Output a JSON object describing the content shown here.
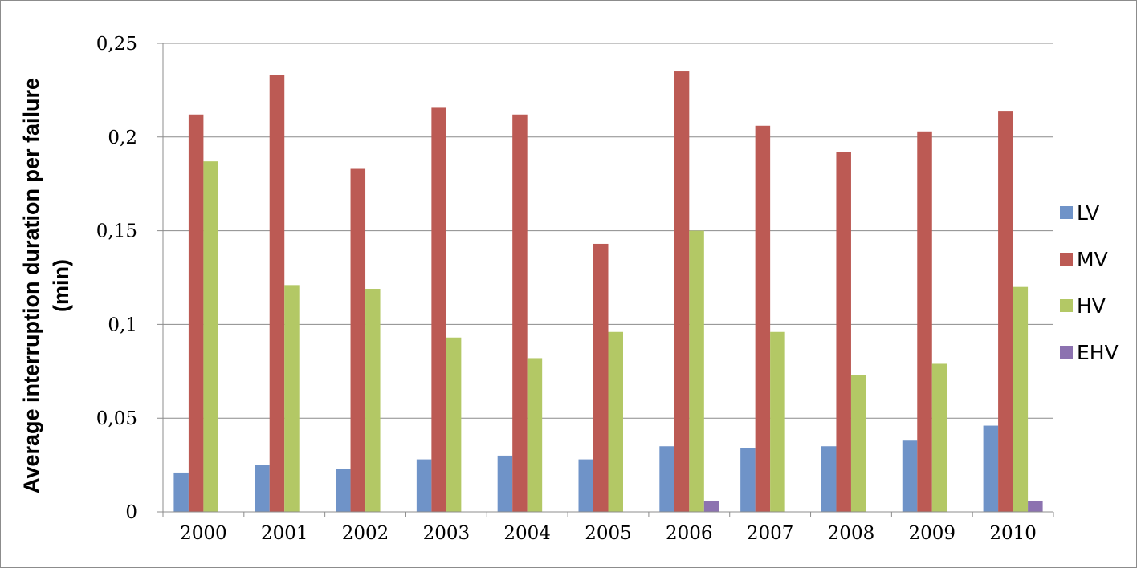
{
  "chart_data": {
    "type": "bar",
    "title": "",
    "xlabel": "",
    "ylabel_lines": [
      "Average interruption duration per failure",
      "(min)"
    ],
    "categories": [
      "2000",
      "2001",
      "2002",
      "2003",
      "2004",
      "2005",
      "2006",
      "2007",
      "2008",
      "2009",
      "2010"
    ],
    "y_ticks": [
      "0",
      "0,05",
      "0,1",
      "0,15",
      "0,2",
      "0,25"
    ],
    "ylim": [
      0,
      0.25
    ],
    "grid": true,
    "legend_position": "right",
    "series": [
      {
        "name": "LV",
        "color": "#6f93c8",
        "values": [
          0.021,
          0.025,
          0.023,
          0.028,
          0.03,
          0.028,
          0.035,
          0.034,
          0.035,
          0.038,
          0.046
        ]
      },
      {
        "name": "MV",
        "color": "#bc5a54",
        "values": [
          0.212,
          0.233,
          0.183,
          0.216,
          0.212,
          0.143,
          0.235,
          0.206,
          0.192,
          0.203,
          0.214
        ]
      },
      {
        "name": "HV",
        "color": "#b3c865",
        "values": [
          0.187,
          0.121,
          0.119,
          0.093,
          0.082,
          0.096,
          0.15,
          0.096,
          0.073,
          0.079,
          0.12
        ]
      },
      {
        "name": "EHV",
        "color": "#8c72b0",
        "values": [
          0,
          0,
          0,
          0,
          0,
          0,
          0.006,
          0,
          0,
          0,
          0.006
        ]
      }
    ]
  }
}
